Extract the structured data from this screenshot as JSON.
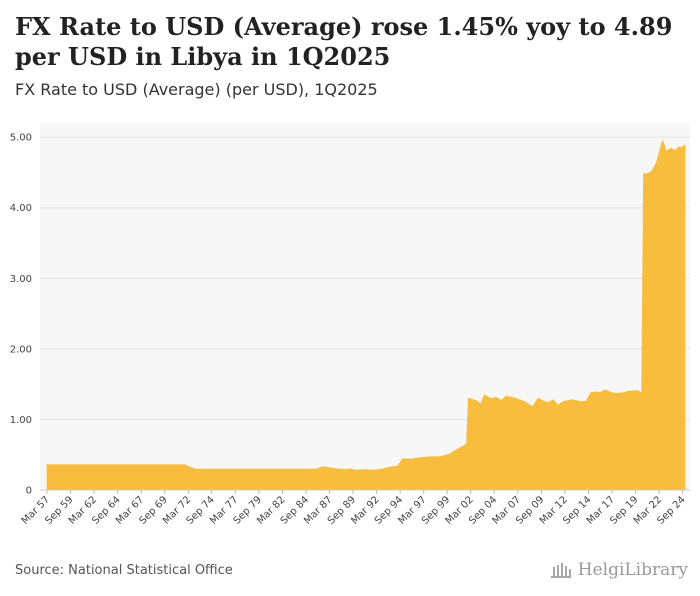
{
  "header": {
    "title": "FX Rate to USD (Average) rose 1.45% yoy to 4.89 per USD in Libya in 1Q2025",
    "subtitle": "FX Rate to USD (Average) (per USD), 1Q2025"
  },
  "footer": {
    "source": "Source: National Statistical Office",
    "logo_text": "HelgiLibrary"
  },
  "colors": {
    "area_fill": "#f8bd3c",
    "plot_background": "#f7f7f7",
    "gridline": "#e3e3e3"
  },
  "chart_data": {
    "type": "area",
    "title": "FX Rate to USD (Average) (per USD), 1Q2025",
    "xlabel": "",
    "ylabel": "",
    "ylim": [
      0,
      5.2
    ],
    "yticks": [
      0,
      1.0,
      2.0,
      3.0,
      4.0,
      5.0
    ],
    "ytick_labels": [
      "0",
      "1.00",
      "2.00",
      "3.00",
      "4.00",
      "5.00"
    ],
    "x_range": [
      1957.25,
      2025.0
    ],
    "xticks": [
      {
        "label": "Mar 57",
        "x": 1957.25
      },
      {
        "label": "Sep 59",
        "x": 1959.75
      },
      {
        "label": "Mar 62",
        "x": 1962.25
      },
      {
        "label": "Sep 64",
        "x": 1964.75
      },
      {
        "label": "Mar 67",
        "x": 1967.25
      },
      {
        "label": "Sep 69",
        "x": 1969.75
      },
      {
        "label": "Mar 72",
        "x": 1972.25
      },
      {
        "label": "Sep 74",
        "x": 1974.75
      },
      {
        "label": "Mar 77",
        "x": 1977.25
      },
      {
        "label": "Sep 79",
        "x": 1979.75
      },
      {
        "label": "Mar 82",
        "x": 1982.25
      },
      {
        "label": "Sep 84",
        "x": 1984.75
      },
      {
        "label": "Mar 87",
        "x": 1987.25
      },
      {
        "label": "Sep 89",
        "x": 1989.75
      },
      {
        "label": "Mar 92",
        "x": 1992.25
      },
      {
        "label": "Sep 94",
        "x": 1994.75
      },
      {
        "label": "Mar 97",
        "x": 1997.25
      },
      {
        "label": "Sep 99",
        "x": 1999.75
      },
      {
        "label": "Mar 02",
        "x": 2002.25
      },
      {
        "label": "Sep 04",
        "x": 2004.75
      },
      {
        "label": "Mar 07",
        "x": 2007.25
      },
      {
        "label": "Sep 09",
        "x": 2009.75
      },
      {
        "label": "Mar 12",
        "x": 2012.25
      },
      {
        "label": "Sep 14",
        "x": 2014.75
      },
      {
        "label": "Mar 17",
        "x": 2017.25
      },
      {
        "label": "Sep 19",
        "x": 2019.75
      },
      {
        "label": "Mar 22",
        "x": 2022.25
      },
      {
        "label": "Sep 24",
        "x": 2024.75
      }
    ],
    "series": [
      {
        "name": "FX Rate to USD (Average)",
        "points": [
          [
            1957.25,
            0.357
          ],
          [
            1971.9,
            0.357
          ],
          [
            1972.1,
            0.345
          ],
          [
            1973.0,
            0.296
          ],
          [
            1985.5,
            0.296
          ],
          [
            1986.0,
            0.3
          ],
          [
            1986.5,
            0.33
          ],
          [
            1987.0,
            0.32
          ],
          [
            1988.0,
            0.3
          ],
          [
            1989.0,
            0.29
          ],
          [
            1989.5,
            0.3
          ],
          [
            1990.0,
            0.28
          ],
          [
            1991.0,
            0.29
          ],
          [
            1992.0,
            0.28
          ],
          [
            1993.0,
            0.3
          ],
          [
            1993.5,
            0.32
          ],
          [
            1994.5,
            0.34
          ],
          [
            1995.0,
            0.44
          ],
          [
            1996.0,
            0.44
          ],
          [
            1997.0,
            0.46
          ],
          [
            1998.0,
            0.47
          ],
          [
            1999.0,
            0.47
          ],
          [
            2000.0,
            0.51
          ],
          [
            2001.0,
            0.59
          ],
          [
            2001.8,
            0.65
          ],
          [
            2002.0,
            1.3
          ],
          [
            2002.8,
            1.27
          ],
          [
            2003.3,
            1.22
          ],
          [
            2003.7,
            1.35
          ],
          [
            2004.3,
            1.3
          ],
          [
            2005.0,
            1.31
          ],
          [
            2005.5,
            1.27
          ],
          [
            2006.0,
            1.33
          ],
          [
            2007.0,
            1.3
          ],
          [
            2008.0,
            1.25
          ],
          [
            2008.8,
            1.18
          ],
          [
            2009.4,
            1.3
          ],
          [
            2010.0,
            1.26
          ],
          [
            2010.5,
            1.24
          ],
          [
            2011.0,
            1.28
          ],
          [
            2011.5,
            1.2
          ],
          [
            2012.0,
            1.25
          ],
          [
            2013.0,
            1.28
          ],
          [
            2014.0,
            1.25
          ],
          [
            2014.5,
            1.26
          ],
          [
            2015.0,
            1.38
          ],
          [
            2015.5,
            1.39
          ],
          [
            2016.0,
            1.38
          ],
          [
            2016.5,
            1.42
          ],
          [
            2017.0,
            1.39
          ],
          [
            2017.5,
            1.37
          ],
          [
            2018.0,
            1.37
          ],
          [
            2018.5,
            1.38
          ],
          [
            2019.0,
            1.4
          ],
          [
            2020.0,
            1.41
          ],
          [
            2020.4,
            1.37
          ],
          [
            2020.6,
            4.48
          ],
          [
            2021.0,
            4.48
          ],
          [
            2021.5,
            4.52
          ],
          [
            2022.0,
            4.65
          ],
          [
            2022.4,
            4.85
          ],
          [
            2022.6,
            4.95
          ],
          [
            2022.8,
            4.89
          ],
          [
            2023.0,
            4.8
          ],
          [
            2023.5,
            4.84
          ],
          [
            2024.0,
            4.81
          ],
          [
            2024.3,
            4.86
          ],
          [
            2024.6,
            4.85
          ],
          [
            2025.0,
            4.89
          ]
        ]
      }
    ]
  }
}
